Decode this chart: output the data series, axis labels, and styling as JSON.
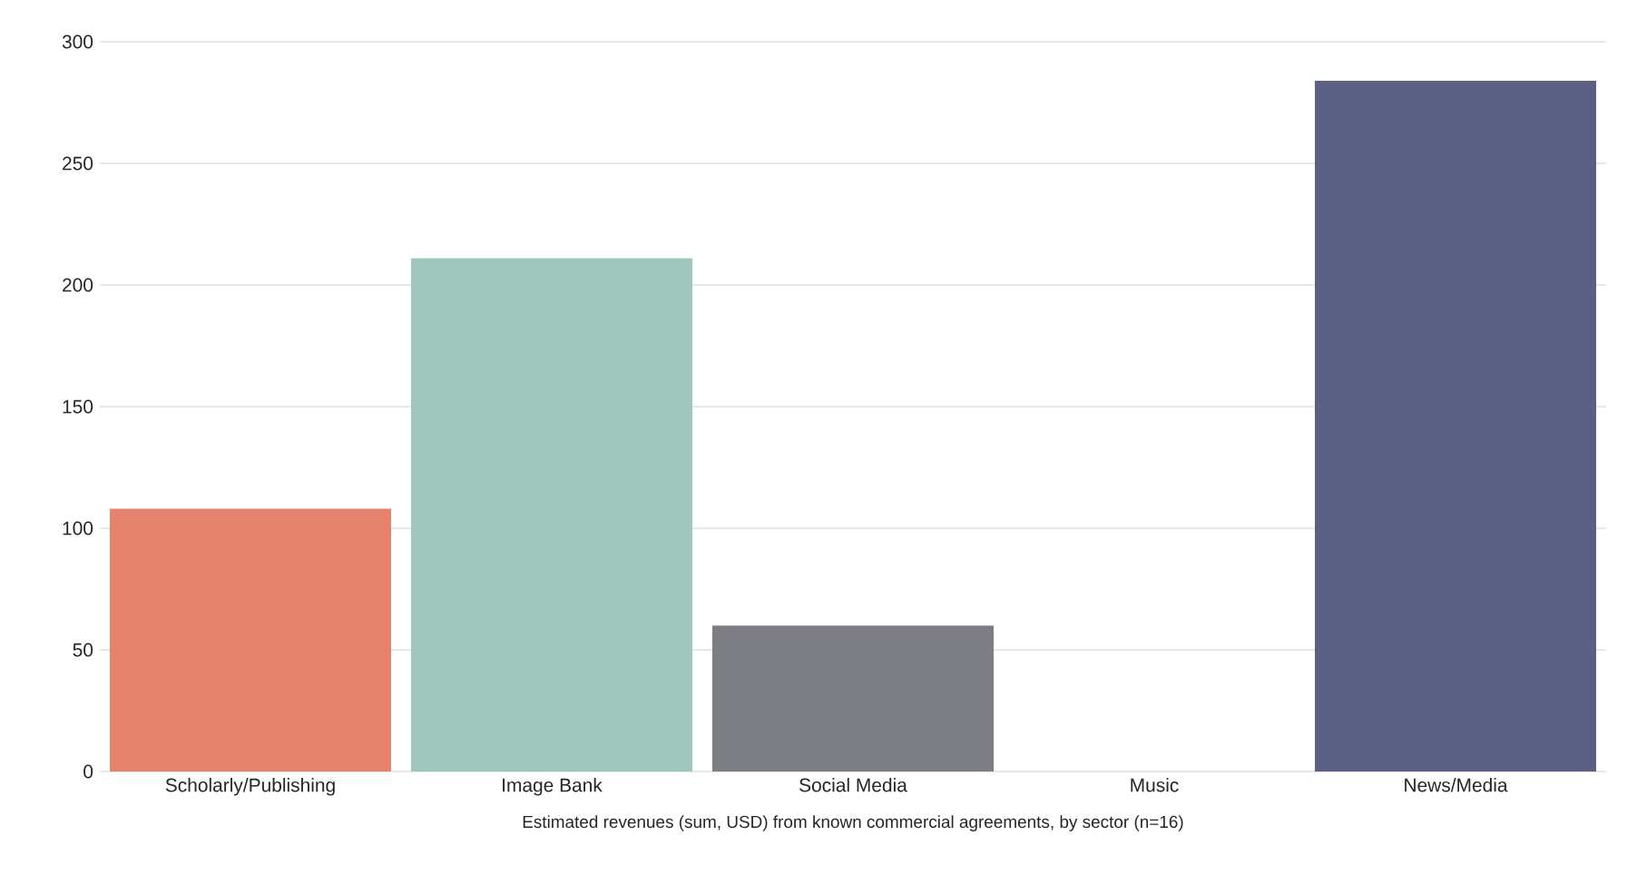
{
  "chart_data": {
    "type": "bar",
    "xlabel": "Estimated revenues (sum, USD) from known commercial agreements, by sector (n=16)",
    "categories": [
      "Scholarly/Publishing",
      "Image Bank",
      "Social Media",
      "Music",
      "News/Media"
    ],
    "values": [
      108,
      211,
      60,
      0,
      284
    ],
    "colors": [
      "#e5826b",
      "#a0c7bd",
      "#7d7d84",
      "#7d7d84",
      "#5c6184"
    ],
    "ylim": [
      0,
      300
    ],
    "yticks": [
      0,
      50,
      100,
      150,
      200,
      250,
      300
    ],
    "grid": "y"
  }
}
